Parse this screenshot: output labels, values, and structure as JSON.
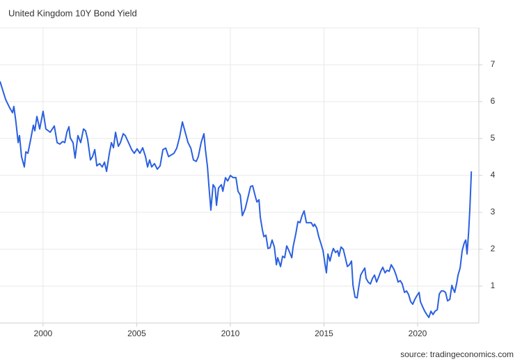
{
  "chart_data": {
    "type": "line",
    "title": "United Kingdom 10Y Bond Yield",
    "source": "source: tradingeconomics.com",
    "color": "#2a5fe0",
    "grid": true,
    "xlim": [
      1997.7,
      2023.27
    ],
    "ylim": [
      0,
      8
    ],
    "xticks": [
      2000,
      2005,
      2010,
      2015,
      2020
    ],
    "yticks": [
      1,
      2,
      3,
      4,
      5,
      6,
      7
    ],
    "x": [
      1997.7,
      1998.0,
      1998.22,
      1998.37,
      1998.44,
      1998.55,
      1998.67,
      1998.74,
      1998.85,
      1999.0,
      1999.08,
      1999.19,
      1999.34,
      1999.48,
      1999.56,
      1999.67,
      1999.82,
      2000.0,
      2000.15,
      2000.38,
      2000.6,
      2000.75,
      2000.9,
      2001.05,
      2001.16,
      2001.27,
      2001.38,
      2001.45,
      2001.6,
      2001.71,
      2001.86,
      2002.01,
      2002.16,
      2002.27,
      2002.38,
      2002.53,
      2002.64,
      2002.76,
      2002.87,
      2003.02,
      2003.16,
      2003.28,
      2003.39,
      2003.54,
      2003.65,
      2003.76,
      2003.87,
      2004.02,
      2004.13,
      2004.28,
      2004.39,
      2004.58,
      2004.73,
      2004.87,
      2005.02,
      2005.17,
      2005.32,
      2005.47,
      2005.58,
      2005.69,
      2005.8,
      2005.95,
      2006.1,
      2006.25,
      2006.4,
      2006.55,
      2006.7,
      2006.99,
      2007.14,
      2007.29,
      2007.44,
      2007.59,
      2007.74,
      2007.89,
      2008.03,
      2008.18,
      2008.29,
      2008.44,
      2008.59,
      2008.67,
      2008.78,
      2008.85,
      2008.96,
      2009.08,
      2009.19,
      2009.26,
      2009.37,
      2009.52,
      2009.6,
      2009.74,
      2009.86,
      2010.0,
      2010.15,
      2010.3,
      2010.41,
      2010.53,
      2010.64,
      2010.79,
      2010.93,
      2011.08,
      2011.19,
      2011.34,
      2011.42,
      2011.53,
      2011.6,
      2011.71,
      2011.79,
      2011.9,
      2012.01,
      2012.12,
      2012.23,
      2012.35,
      2012.46,
      2012.53,
      2012.68,
      2012.79,
      2012.9,
      2013.01,
      2013.13,
      2013.28,
      2013.35,
      2013.5,
      2013.61,
      2013.72,
      2013.83,
      2013.94,
      2014.06,
      2014.32,
      2014.43,
      2014.5,
      2014.61,
      2014.72,
      2014.84,
      2014.95,
      2015.06,
      2015.13,
      2015.21,
      2015.32,
      2015.43,
      2015.5,
      2015.62,
      2015.73,
      2015.8,
      2015.91,
      2016.03,
      2016.14,
      2016.25,
      2016.36,
      2016.47,
      2016.55,
      2016.66,
      2016.77,
      2016.84,
      2016.96,
      2017.07,
      2017.18,
      2017.25,
      2017.36,
      2017.48,
      2017.59,
      2017.7,
      2017.81,
      2017.92,
      2018.03,
      2018.14,
      2018.26,
      2018.37,
      2018.48,
      2018.59,
      2018.74,
      2018.85,
      2018.96,
      2019.07,
      2019.18,
      2019.3,
      2019.41,
      2019.52,
      2019.63,
      2019.74,
      2019.85,
      2019.96,
      2020.08,
      2020.15,
      2020.26,
      2020.38,
      2020.49,
      2020.6,
      2020.71,
      2020.82,
      2020.93,
      2021.05,
      2021.16,
      2021.27,
      2021.38,
      2021.49,
      2021.6,
      2021.72,
      2021.83,
      2021.9,
      2021.98,
      2022.09,
      2022.16,
      2022.27,
      2022.38,
      2022.49,
      2022.57,
      2022.64,
      2022.72,
      2022.79,
      2022.87
    ],
    "values": [
      6.55,
      6.06,
      5.83,
      5.7,
      5.87,
      5.45,
      4.89,
      5.08,
      4.51,
      4.23,
      4.64,
      4.6,
      4.98,
      5.36,
      5.21,
      5.6,
      5.26,
      5.74,
      5.26,
      5.17,
      5.34,
      4.89,
      4.85,
      4.92,
      4.89,
      5.17,
      5.32,
      5.02,
      4.89,
      4.47,
      5.08,
      4.89,
      5.26,
      5.21,
      4.98,
      4.42,
      4.51,
      4.7,
      4.26,
      4.32,
      4.23,
      4.36,
      4.11,
      4.6,
      4.89,
      4.75,
      5.17,
      4.79,
      4.89,
      5.13,
      5.08,
      4.87,
      4.7,
      4.6,
      4.72,
      4.6,
      4.75,
      4.51,
      4.23,
      4.42,
      4.23,
      4.32,
      4.17,
      4.26,
      4.7,
      4.74,
      4.51,
      4.6,
      4.74,
      5.04,
      5.45,
      5.17,
      4.89,
      4.74,
      4.42,
      4.38,
      4.51,
      4.89,
      5.13,
      4.7,
      4.23,
      3.75,
      3.06,
      3.75,
      3.66,
      3.19,
      3.66,
      3.75,
      3.57,
      3.94,
      3.85,
      4.0,
      3.94,
      3.94,
      3.57,
      3.47,
      2.91,
      3.09,
      3.38,
      3.7,
      3.72,
      3.42,
      3.28,
      3.34,
      2.87,
      2.53,
      2.34,
      2.38,
      2.02,
      2.04,
      2.25,
      2.06,
      1.58,
      1.77,
      1.53,
      1.81,
      1.77,
      2.09,
      1.96,
      1.77,
      2.06,
      2.43,
      2.75,
      2.72,
      2.91,
      3.04,
      2.72,
      2.72,
      2.62,
      2.68,
      2.58,
      2.34,
      2.15,
      1.96,
      1.58,
      1.36,
      1.87,
      1.68,
      1.91,
      2.02,
      1.91,
      1.96,
      1.81,
      2.06,
      2.0,
      1.77,
      1.53,
      1.58,
      1.68,
      1.02,
      0.7,
      0.68,
      0.92,
      1.3,
      1.4,
      1.49,
      1.21,
      1.11,
      1.06,
      1.21,
      1.3,
      1.11,
      1.25,
      1.4,
      1.51,
      1.36,
      1.43,
      1.4,
      1.58,
      1.45,
      1.3,
      1.11,
      1.15,
      1.06,
      0.83,
      0.87,
      0.77,
      0.58,
      0.51,
      0.64,
      0.74,
      0.83,
      0.58,
      0.45,
      0.32,
      0.23,
      0.15,
      0.32,
      0.23,
      0.32,
      0.36,
      0.79,
      0.87,
      0.87,
      0.83,
      0.6,
      0.64,
      1.02,
      0.92,
      0.83,
      1.09,
      1.3,
      1.49,
      1.96,
      2.17,
      2.25,
      1.87,
      2.43,
      3.09,
      4.11
    ]
  }
}
